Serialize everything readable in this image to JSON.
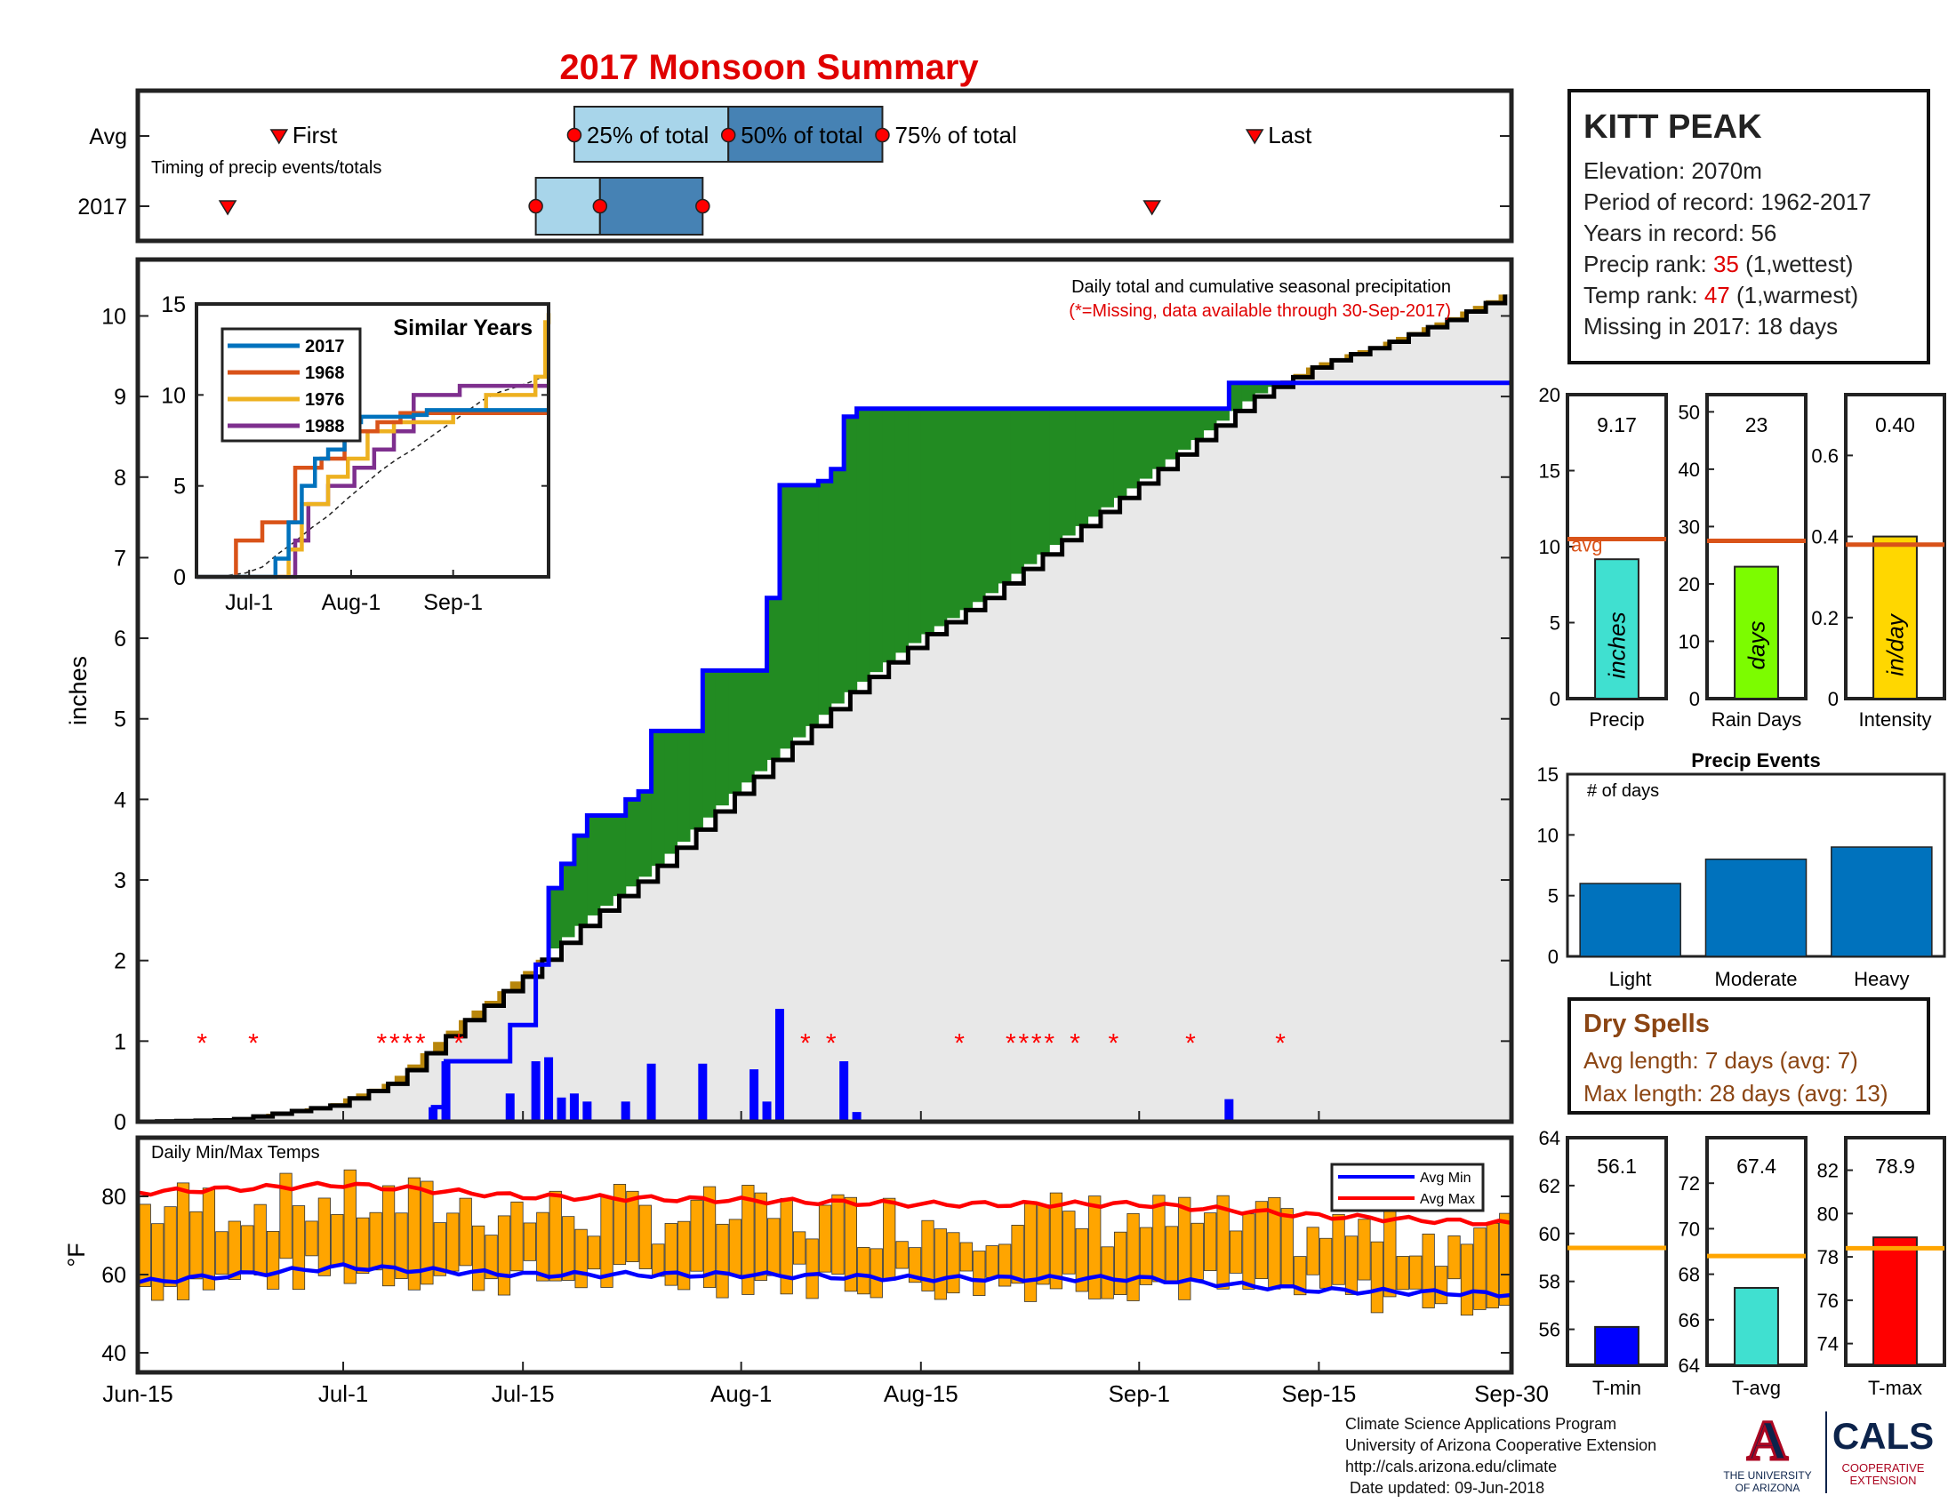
{
  "title": "2017 Monsoon Summary",
  "timing": {
    "row_labels": [
      "Avg",
      "2017"
    ],
    "caption": "Timing of precip events/totals",
    "avg_first_label": "First",
    "avg_last_label": "Last",
    "pct25_label": "25% of total",
    "pct50_label": "50% of total",
    "pct75_label": "75% of total",
    "avg_days": {
      "first": 11,
      "p25": 34,
      "p50": 46,
      "p75": 58,
      "last": 87
    },
    "y2017_days": {
      "first": 7,
      "p25": 31,
      "p50": 36,
      "p75": 44,
      "last": 79
    },
    "colors": {
      "early": "#a8d5ea",
      "late": "#4682b4",
      "marker": "#ff0000"
    }
  },
  "main_chart": {
    "annotation_line1": "Daily total and cumulative seasonal precipitation",
    "annotation_line2": "(*=Missing, data available through 30-Sep-2017)",
    "ylabel": "inches",
    "y_ticks": [
      "0",
      "1",
      "2",
      "3",
      "4",
      "5",
      "6",
      "7",
      "8",
      "9",
      "10"
    ],
    "x_ticks": [
      "Jun-15",
      "Jul-1",
      "Jul-15",
      "Aug-1",
      "Aug-15",
      "Sep-1",
      "Sep-15",
      "Sep-30"
    ],
    "colors": {
      "above": "#228b22",
      "below": "#b8860b",
      "climo_fill": "#e8e8e8",
      "obs_line": "#0000ff",
      "climo_line": "#000000",
      "daily_bar": "#0000ff",
      "missing": "#ff0000"
    }
  },
  "similar_years": {
    "title": "Similar Years",
    "y_ticks": [
      "0",
      "5",
      "10",
      "15"
    ],
    "x_ticks": [
      "Jul-1",
      "Aug-1",
      "Sep-1"
    ],
    "legend": [
      "2017",
      "1968",
      "1976",
      "1988"
    ],
    "colors": [
      "#0072bd",
      "#d95319",
      "#edb120",
      "#7e2f8e"
    ]
  },
  "temps": {
    "label": "Daily Min/Max Temps",
    "ylabel": "°F",
    "y_ticks": [
      "40",
      "60",
      "80"
    ],
    "legend_min": "Avg Min",
    "legend_max": "Avg Max",
    "colors": {
      "bar": "#ffa500",
      "avg_min": "#0000ff",
      "avg_max": "#ff0000"
    }
  },
  "station": {
    "name": "KITT PEAK",
    "elevation_label": "Elevation: 2070m",
    "period_label": "Period of record: 1962-2017",
    "years_label": "Years in record: 56",
    "precip_rank_prefix": "Precip rank: ",
    "precip_rank_value": "35",
    "precip_rank_suffix": " (1,wettest)",
    "temp_rank_prefix": "Temp rank: ",
    "temp_rank_value": "47",
    "temp_rank_suffix": " (1,warmest)",
    "missing_label": "Missing in 2017: 18 days"
  },
  "summary_bars": [
    {
      "label": "Precip",
      "value_text": "9.17",
      "value": 9.17,
      "avg": 10.5,
      "unit": "inches",
      "ymax": 20,
      "ticks": [
        "0",
        "5",
        "10",
        "15",
        "20"
      ],
      "avg_label": "avg",
      "color": "#40e0d0"
    },
    {
      "label": "Rain Days",
      "value_text": "23",
      "value": 23,
      "avg": 27.5,
      "unit": "days",
      "ymax": 53,
      "ticks": [
        "0",
        "10",
        "20",
        "30",
        "40",
        "50"
      ],
      "color": "#7cfc00"
    },
    {
      "label": "Intensity",
      "value_text": "0.40",
      "value": 0.4,
      "avg": 0.38,
      "unit": "in/day",
      "ymax": 0.75,
      "ticks": [
        "0",
        "0.2",
        "0.4",
        "0.6"
      ],
      "color": "#ffd700"
    }
  ],
  "precip_events": {
    "title": "Precip Events",
    "ylabel": "# of days",
    "y_ticks": [
      "0",
      "5",
      "10",
      "15"
    ],
    "categories": [
      "Light",
      "Moderate",
      "Heavy"
    ],
    "values": [
      6,
      8,
      9
    ],
    "color": "#0072bd"
  },
  "dry_spells": {
    "title": "Dry Spells",
    "avg_length": "Avg length: 7 days (avg: 7)",
    "max_length": "Max length: 28 days (avg: 13)"
  },
  "temp_bars": [
    {
      "label": "T-min",
      "value_text": "56.1",
      "value": 56.1,
      "avg": 59.4,
      "ymin": 54.5,
      "ymax": 64,
      "ticks": [
        "56",
        "58",
        "60",
        "62",
        "64"
      ],
      "color": "#0000ff"
    },
    {
      "label": "T-avg",
      "value_text": "67.4",
      "value": 67.4,
      "avg": 68.8,
      "ymin": 64,
      "ymax": 74,
      "ticks": [
        "64",
        "66",
        "68",
        "70",
        "72"
      ],
      "color": "#40e0d0"
    },
    {
      "label": "T-max",
      "value_text": "78.9",
      "value": 78.9,
      "avg": 78.4,
      "ymin": 73,
      "ymax": 83.5,
      "ticks": [
        "74",
        "76",
        "78",
        "80",
        "82"
      ],
      "color": "#ff0000"
    }
  ],
  "credits": {
    "line1": "Climate Science Applications Program",
    "line2": "University of Arizona Cooperative Extension",
    "line3": "http://cals.arizona.edu/climate",
    "line4": " Date updated: 09-Jun-2018"
  },
  "logos": {
    "ua_letter": "A",
    "ua_text1": "THE UNIVERSITY",
    "ua_text2": "OF ARIZONA",
    "cals": "CALS",
    "cals_sub1": "COOPERATIVE",
    "cals_sub2": "EXTENSION"
  },
  "chart_data": [
    {
      "type": "area",
      "title": "Daily total and cumulative seasonal precipitation",
      "xlabel": "",
      "ylabel": "inches",
      "ylim": [
        0,
        10.7
      ],
      "x_range": [
        "Jun-15",
        "Sep-30"
      ],
      "series": [
        {
          "name": "2017 cumulative",
          "points": [
            [
              "Jun-15",
              0
            ],
            [
              "Jul-7",
              0
            ],
            [
              "Jul-8",
              0.18
            ],
            [
              "Jul-9",
              0.75
            ],
            [
              "Jul-13",
              0.75
            ],
            [
              "Jul-14",
              1.2
            ],
            [
              "Jul-16",
              1.95
            ],
            [
              "Jul-17",
              2.9
            ],
            [
              "Jul-18",
              3.2
            ],
            [
              "Jul-19",
              3.55
            ],
            [
              "Jul-20",
              3.8
            ],
            [
              "Jul-23",
              4.0
            ],
            [
              "Jul-24",
              4.1
            ],
            [
              "Jul-25",
              4.85
            ],
            [
              "Jul-28",
              4.85
            ],
            [
              "Jul-29",
              5.6
            ],
            [
              "Aug-2",
              5.6
            ],
            [
              "Aug-3",
              6.5
            ],
            [
              "Aug-4",
              7.9
            ],
            [
              "Aug-7",
              7.95
            ],
            [
              "Aug-8",
              8.1
            ],
            [
              "Aug-9",
              8.75
            ],
            [
              "Aug-10",
              8.85
            ],
            [
              "Sep-7",
              8.85
            ],
            [
              "Sep-8",
              9.17
            ],
            [
              "Sep-30",
              9.17
            ]
          ]
        },
        {
          "name": "Avg cumulative",
          "points": [
            [
              "Jun-15",
              0
            ],
            [
              "Jun-22",
              0.02
            ],
            [
              "Jun-30",
              0.2
            ],
            [
              "Jul-5",
              0.5
            ],
            [
              "Jul-10",
              1.2
            ],
            [
              "Jul-15",
              1.8
            ],
            [
              "Jul-20",
              2.5
            ],
            [
              "Jul-25",
              3.1
            ],
            [
              "Jul-31",
              4.0
            ],
            [
              "Aug-5",
              4.7
            ],
            [
              "Aug-10",
              5.4
            ],
            [
              "Aug-15",
              6.0
            ],
            [
              "Aug-20",
              6.5
            ],
            [
              "Aug-25",
              7.1
            ],
            [
              "Aug-31",
              7.8
            ],
            [
              "Sep-5",
              8.4
            ],
            [
              "Sep-10",
              9.0
            ],
            [
              "Sep-15",
              9.4
            ],
            [
              "Sep-20",
              9.65
            ],
            [
              "Sep-25",
              9.95
            ],
            [
              "Sep-30",
              10.3
            ]
          ]
        },
        {
          "name": "Daily precip",
          "points": [
            [
              "Jul-8",
              0.18
            ],
            [
              "Jul-9",
              0.75
            ],
            [
              "Jul-14",
              0.35
            ],
            [
              "Jul-16",
              0.75
            ],
            [
              "Jul-17",
              0.8
            ],
            [
              "Jul-18",
              0.3
            ],
            [
              "Jul-19",
              0.35
            ],
            [
              "Jul-20",
              0.25
            ],
            [
              "Jul-23",
              0.25
            ],
            [
              "Jul-25",
              0.72
            ],
            [
              "Jul-29",
              0.72
            ],
            [
              "Aug-2",
              0.65
            ],
            [
              "Aug-3",
              0.25
            ],
            [
              "Aug-4",
              1.4
            ],
            [
              "Aug-9",
              0.75
            ],
            [
              "Aug-10",
              0.12
            ],
            [
              "Sep-8",
              0.28
            ]
          ]
        },
        {
          "name": "Missing",
          "points": [
            [
              "Jun-20",
              1
            ],
            [
              "Jun-24",
              1
            ],
            [
              "Jul-4",
              1
            ],
            [
              "Jul-5",
              1
            ],
            [
              "Jul-6",
              1
            ],
            [
              "Jul-7",
              1
            ],
            [
              "Jul-10",
              1
            ],
            [
              "Aug-6",
              1
            ],
            [
              "Aug-8",
              1
            ],
            [
              "Aug-18",
              1
            ],
            [
              "Aug-22",
              1
            ],
            [
              "Aug-23",
              1
            ],
            [
              "Aug-24",
              1
            ],
            [
              "Aug-25",
              1
            ],
            [
              "Aug-27",
              1
            ],
            [
              "Aug-30",
              1
            ],
            [
              "Sep-5",
              1
            ],
            [
              "Sep-12",
              1
            ]
          ]
        }
      ]
    },
    {
      "type": "line",
      "title": "Similar Years",
      "ylim": [
        0,
        15
      ],
      "series": [
        {
          "name": "2017",
          "points": [
            [
              0,
              0
            ],
            [
              22,
              0
            ],
            [
              24,
              1
            ],
            [
              28,
              3
            ],
            [
              32,
              5
            ],
            [
              36,
              6.5
            ],
            [
              40,
              7
            ],
            [
              45,
              8.5
            ],
            [
              50,
              8.8
            ],
            [
              66,
              8.9
            ],
            [
              70,
              9.17
            ],
            [
              107,
              9.17
            ]
          ]
        },
        {
          "name": "1968",
          "points": [
            [
              0,
              0
            ],
            [
              10,
              0
            ],
            [
              12,
              2
            ],
            [
              18,
              2
            ],
            [
              20,
              3
            ],
            [
              30,
              6
            ],
            [
              38,
              6.5
            ],
            [
              45,
              8
            ],
            [
              55,
              8.5
            ],
            [
              62,
              9
            ],
            [
              107,
              9
            ]
          ]
        },
        {
          "name": "1976",
          "points": [
            [
              0,
              0
            ],
            [
              24,
              0
            ],
            [
              28,
              1.5
            ],
            [
              32,
              4
            ],
            [
              40,
              5.5
            ],
            [
              46,
              6.5
            ],
            [
              52,
              8
            ],
            [
              60,
              8.5
            ],
            [
              78,
              9
            ],
            [
              88,
              10
            ],
            [
              100,
              10
            ],
            [
              103,
              11
            ],
            [
              106,
              14
            ],
            [
              107,
              14.5
            ]
          ]
        },
        {
          "name": "1988",
          "points": [
            [
              0,
              0
            ],
            [
              26,
              0
            ],
            [
              30,
              2
            ],
            [
              34,
              4
            ],
            [
              40,
              5
            ],
            [
              48,
              6
            ],
            [
              54,
              7
            ],
            [
              60,
              8
            ],
            [
              66,
              10
            ],
            [
              72,
              10
            ],
            [
              80,
              10.5
            ],
            [
              107,
              10.5
            ]
          ]
        }
      ]
    },
    {
      "type": "bar",
      "title": "Daily Min/Max Temps",
      "ylabel": "°F",
      "ylim": [
        35,
        95
      ],
      "series": [
        {
          "name": "Avg Min",
          "points": [
            [
              "Jun-15",
              58
            ],
            [
              "Jul-1",
              62
            ],
            [
              "Jul-15",
              60
            ],
            [
              "Aug-1",
              60
            ],
            [
              "Aug-15",
              59
            ],
            [
              "Sep-1",
              59
            ],
            [
              "Sep-15",
              56
            ],
            [
              "Sep-30",
              55
            ]
          ]
        },
        {
          "name": "Avg Max",
          "points": [
            [
              "Jun-15",
              81
            ],
            [
              "Jul-1",
              83
            ],
            [
              "Jul-15",
              80
            ],
            [
              "Aug-1",
              79
            ],
            [
              "Aug-15",
              78
            ],
            [
              "Sep-1",
              78
            ],
            [
              "Sep-15",
              75
            ],
            [
              "Sep-30",
              73
            ]
          ]
        }
      ]
    },
    {
      "type": "bar",
      "title": "Precip Events",
      "categories": [
        "Light",
        "Moderate",
        "Heavy"
      ],
      "values": [
        6,
        8,
        9
      ],
      "ylabel": "# of days",
      "ylim": [
        0,
        15
      ]
    }
  ]
}
